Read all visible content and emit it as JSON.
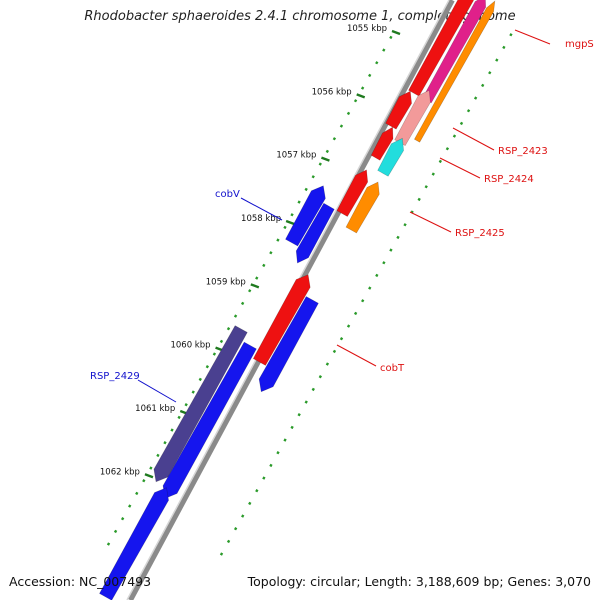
{
  "title": "Rhodobacter sphaeroides 2.4.1 chromosome 1, complete genome",
  "accession_text": "Accession: NC_007493",
  "topology_text": "Topology: circular; Length: 3,188,609 bp; Genes: 3,070",
  "ruler": {
    "ticks": [
      {
        "pos_kbp": 1055,
        "label": "1055 kbp"
      },
      {
        "pos_kbp": 1056,
        "label": "1056 kbp"
      },
      {
        "pos_kbp": 1057,
        "label": "1057 kbp"
      },
      {
        "pos_kbp": 1058,
        "label": "1058 kbp"
      },
      {
        "pos_kbp": 1059,
        "label": "1059 kbp"
      },
      {
        "pos_kbp": 1060,
        "label": "1060 kbp"
      },
      {
        "pos_kbp": 1061,
        "label": "1061 kbp"
      },
      {
        "pos_kbp": 1062,
        "label": "1062 kbp"
      }
    ]
  },
  "gene_labels": [
    {
      "id": "mgpS",
      "text": "mgpS",
      "color": "#dd1111"
    },
    {
      "id": "RSP_2423",
      "text": "RSP_2423",
      "color": "#dd1111"
    },
    {
      "id": "RSP_2424",
      "text": "RSP_2424",
      "color": "#dd1111"
    },
    {
      "id": "RSP_2425",
      "text": "RSP_2425",
      "color": "#dd1111"
    },
    {
      "id": "cobV",
      "text": "cobV",
      "color": "#1111cc"
    },
    {
      "id": "cobT",
      "text": "cobT",
      "color": "#dd1111"
    },
    {
      "id": "RSP_2429",
      "text": "RSP_2429",
      "color": "#1111cc"
    }
  ],
  "colors": {
    "backbone": "#8a8a8a",
    "minor_tick": "#2a9a2a",
    "major_tick": "#1f7a1f",
    "red_gene": "#ee1111",
    "blue_gene": "#1515ee",
    "slate_gene": "#4a4090",
    "cyan_gene": "#22dddd",
    "orange_gene": "#ff8c00",
    "pink_gene": "#f29a9a",
    "magenta_gene": "#e0208a"
  }
}
